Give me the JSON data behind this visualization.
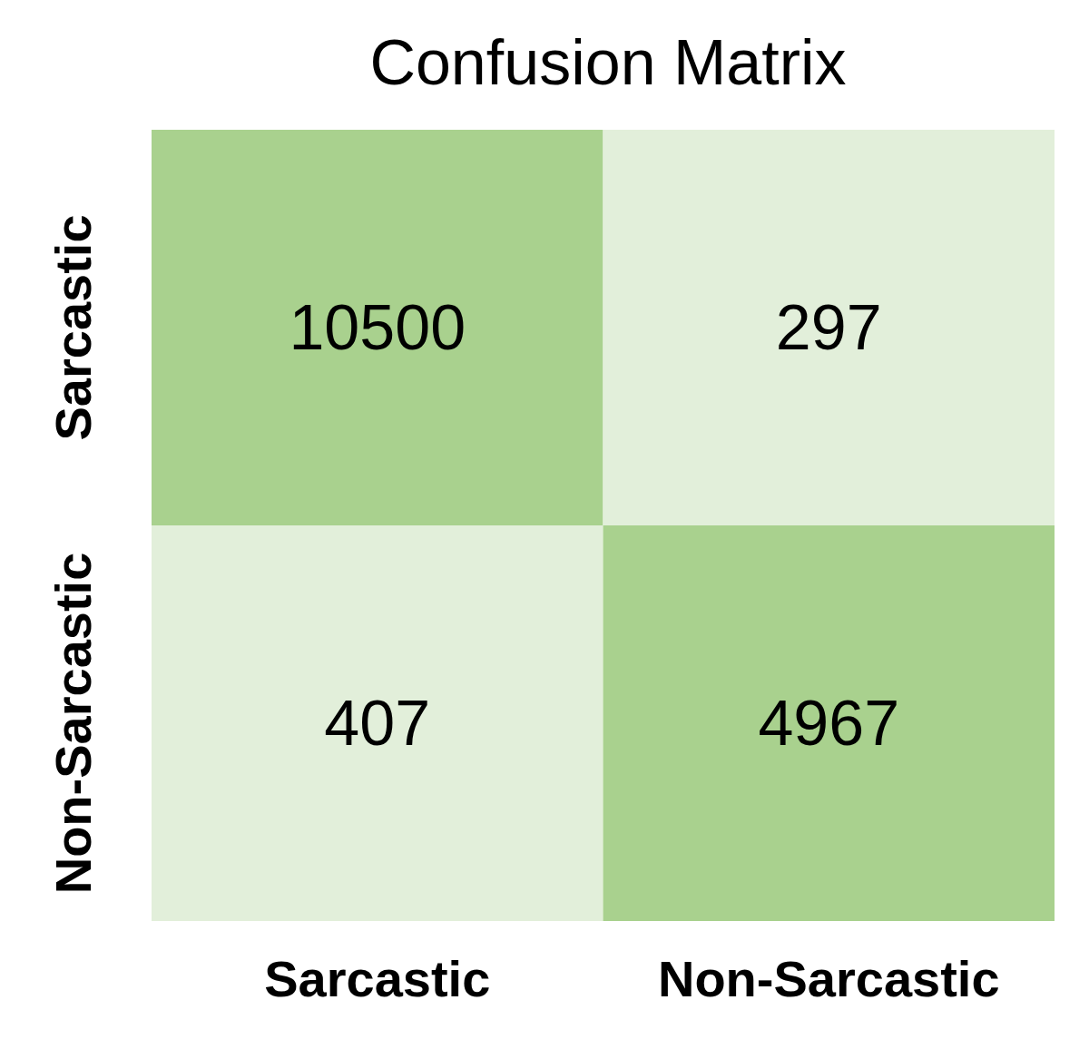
{
  "chart_data": {
    "type": "heatmap",
    "title": "Confusion Matrix",
    "categories": [
      "Sarcastic",
      "Non-Sarcastic"
    ],
    "y_categories": [
      "Sarcastic",
      "Non-Sarcastic"
    ],
    "cells": [
      [
        10500,
        297
      ],
      [
        407,
        4967
      ]
    ],
    "colors": [
      [
        "#a9d18e",
        "#e2efda"
      ],
      [
        "#e2efda",
        "#a9d18e"
      ]
    ],
    "data_labels": true
  }
}
